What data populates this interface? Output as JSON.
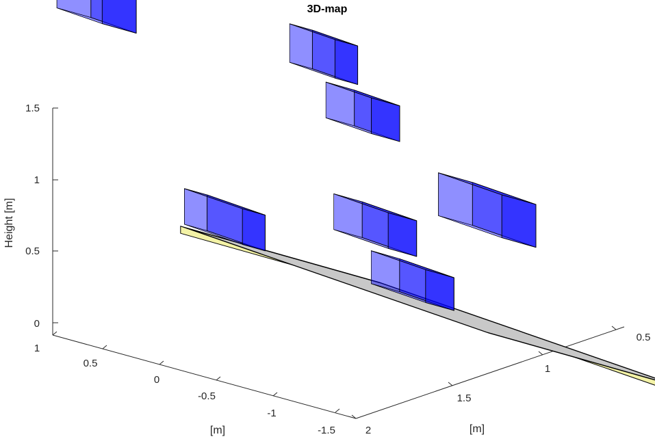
{
  "chart_data": {
    "type": "3d-map",
    "title": "3D-map",
    "zlabel": "Height [m]",
    "xlabel": "[m]",
    "ylabel": "[m]",
    "z_ticks": [
      "0",
      "0.5",
      "1",
      "1.5"
    ],
    "x_ticks": [
      "0.5",
      "1",
      "1.5",
      "2"
    ],
    "y_ticks": [
      "1",
      "0.5",
      "0",
      "-0.5",
      "-1",
      "-1.5"
    ],
    "grid": false,
    "colors": {
      "obstacle": "#0000ff",
      "floor": "#c8c8c8",
      "border": "#f3f2a6",
      "edge": "#000000"
    },
    "floor": {
      "x": [
        0.25,
        1.95
      ],
      "y": [
        -1.0,
        0.75
      ],
      "z": 0
    },
    "obstacles": [
      {
        "x": [
          0.24,
          0.56
        ],
        "y": [
          0.5,
          0.7
        ],
        "z": [
          0.02,
          0.27
        ]
      },
      {
        "x": [
          0.8,
          1.1
        ],
        "y": [
          -0.3,
          -0.05
        ],
        "z": [
          0.02,
          0.25
        ]
      },
      {
        "x": [
          0.5,
          0.8
        ],
        "y": [
          -0.45,
          -0.2
        ],
        "z": [
          0.3,
          0.55
        ]
      },
      {
        "x": [
          0.1,
          0.35
        ],
        "y": [
          -0.65,
          -0.45
        ],
        "z": [
          1.35,
          1.62
        ]
      },
      {
        "x": [
          0.3,
          0.55
        ],
        "y": [
          -0.7,
          -0.45
        ],
        "z": [
          1.05,
          1.3
        ]
      },
      {
        "x": [
          -0.15,
          0.1
        ],
        "y": [
          0.9,
          1.2
        ],
        "z": [
          1.25,
          1.55
        ]
      },
      {
        "x": [
          0.45,
          0.8
        ],
        "y": [
          -1.5,
          -1.2
        ],
        "z": [
          0.6,
          0.9
        ]
      }
    ]
  }
}
